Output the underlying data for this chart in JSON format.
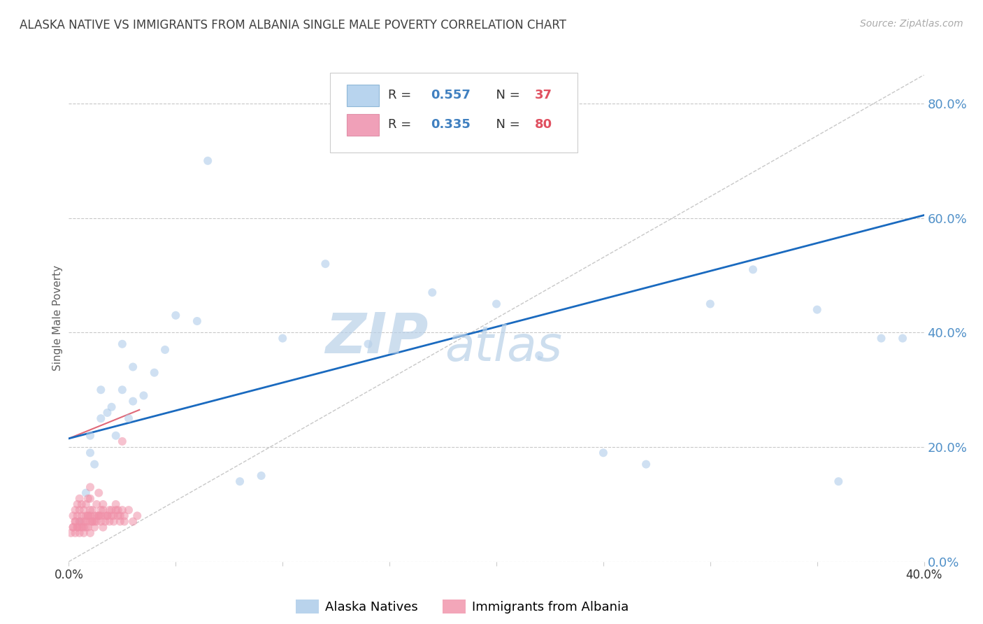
{
  "title": "ALASKA NATIVE VS IMMIGRANTS FROM ALBANIA SINGLE MALE POVERTY CORRELATION CHART",
  "source": "Source: ZipAtlas.com",
  "ylabel": "Single Male Poverty",
  "xlim": [
    0.0,
    0.4
  ],
  "ylim": [
    0.0,
    0.85
  ],
  "yticks": [
    0.0,
    0.2,
    0.4,
    0.6,
    0.8
  ],
  "xticks": [
    0.0,
    0.05,
    0.1,
    0.15,
    0.2,
    0.25,
    0.3,
    0.35,
    0.4
  ],
  "alaska_color": "#a8c8e8",
  "albania_color": "#f090a8",
  "alaska_line_color": "#1a6abf",
  "albania_line_color": "#e06878",
  "ref_line_color": "#c8c8c8",
  "background_color": "#ffffff",
  "grid_color": "#c8c8c8",
  "title_color": "#404040",
  "ylabel_color": "#606060",
  "tick_color_right": "#5090c8",
  "alaska_scatter_x": [
    0.005,
    0.008,
    0.01,
    0.01,
    0.012,
    0.015,
    0.015,
    0.018,
    0.02,
    0.022,
    0.025,
    0.025,
    0.028,
    0.03,
    0.03,
    0.035,
    0.04,
    0.045,
    0.05,
    0.06,
    0.065,
    0.08,
    0.09,
    0.1,
    0.12,
    0.14,
    0.17,
    0.2,
    0.22,
    0.25,
    0.27,
    0.3,
    0.32,
    0.35,
    0.36,
    0.38,
    0.39
  ],
  "alaska_scatter_y": [
    0.07,
    0.12,
    0.19,
    0.22,
    0.17,
    0.25,
    0.3,
    0.26,
    0.27,
    0.22,
    0.3,
    0.38,
    0.25,
    0.28,
    0.34,
    0.29,
    0.33,
    0.37,
    0.43,
    0.42,
    0.7,
    0.14,
    0.15,
    0.39,
    0.52,
    0.38,
    0.47,
    0.45,
    0.36,
    0.19,
    0.17,
    0.45,
    0.51,
    0.44,
    0.14,
    0.39,
    0.39
  ],
  "albania_scatter_x": [
    0.001,
    0.002,
    0.002,
    0.003,
    0.003,
    0.003,
    0.004,
    0.004,
    0.004,
    0.005,
    0.005,
    0.005,
    0.005,
    0.006,
    0.006,
    0.006,
    0.007,
    0.007,
    0.007,
    0.008,
    0.008,
    0.008,
    0.009,
    0.009,
    0.009,
    0.01,
    0.01,
    0.01,
    0.01,
    0.01,
    0.011,
    0.011,
    0.012,
    0.012,
    0.013,
    0.013,
    0.014,
    0.014,
    0.015,
    0.015,
    0.016,
    0.016,
    0.017,
    0.018,
    0.019,
    0.02,
    0.021,
    0.022,
    0.023,
    0.024,
    0.025,
    0.026,
    0.028,
    0.03,
    0.032,
    0.002,
    0.003,
    0.004,
    0.005,
    0.006,
    0.007,
    0.008,
    0.009,
    0.01,
    0.011,
    0.012,
    0.013,
    0.014,
    0.015,
    0.016,
    0.017,
    0.018,
    0.019,
    0.02,
    0.021,
    0.022,
    0.023,
    0.024,
    0.025,
    0.026
  ],
  "albania_scatter_y": [
    0.05,
    0.06,
    0.08,
    0.05,
    0.07,
    0.09,
    0.06,
    0.08,
    0.1,
    0.05,
    0.07,
    0.09,
    0.11,
    0.06,
    0.08,
    0.1,
    0.05,
    0.07,
    0.09,
    0.06,
    0.08,
    0.1,
    0.06,
    0.08,
    0.11,
    0.05,
    0.07,
    0.09,
    0.11,
    0.13,
    0.07,
    0.09,
    0.06,
    0.08,
    0.07,
    0.1,
    0.08,
    0.12,
    0.07,
    0.09,
    0.06,
    0.1,
    0.08,
    0.08,
    0.09,
    0.08,
    0.08,
    0.1,
    0.09,
    0.07,
    0.21,
    0.07,
    0.09,
    0.07,
    0.08,
    0.06,
    0.07,
    0.06,
    0.06,
    0.07,
    0.06,
    0.07,
    0.08,
    0.08,
    0.07,
    0.07,
    0.08,
    0.08,
    0.08,
    0.09,
    0.07,
    0.08,
    0.07,
    0.09,
    0.07,
    0.09,
    0.08,
    0.08,
    0.09,
    0.08
  ],
  "alaska_line_x": [
    0.0,
    0.4
  ],
  "alaska_line_y": [
    0.215,
    0.605
  ],
  "albania_line_x": [
    0.0,
    0.033
  ],
  "albania_line_y": [
    0.215,
    0.265
  ],
  "ref_line_x": [
    0.0,
    0.4
  ],
  "ref_line_y": [
    0.0,
    0.85
  ],
  "watermark_zip": "ZIP",
  "watermark_atlas": "atlas",
  "marker_size": 75,
  "marker_alpha": 0.55,
  "figsize": [
    14.06,
    8.92
  ],
  "dpi": 100
}
